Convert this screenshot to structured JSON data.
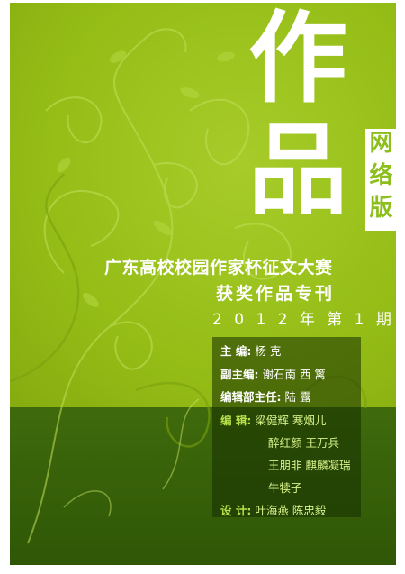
{
  "cover": {
    "title_char_1": "作",
    "title_char_2": "品",
    "side_label": [
      "网",
      "络",
      "版"
    ],
    "headline_1": "广东高校校园作家杯征文大赛",
    "headline_2": "获奖作品专刊",
    "headline_3": "2 0 1 2 年 第 1 期"
  },
  "credits": {
    "chief_label": "主   编:",
    "chief_value": "杨   克",
    "deputy_label": "副主编:",
    "deputy_value": "谢石南  西   篱",
    "director_label": "编辑部主任:",
    "director_value": "陆   露",
    "editors_label": "编   辑:",
    "editors": [
      "梁健辉  寒烟儿",
      "醉红颜  王万兵",
      "王朋非  麒麟凝瑞",
      "牛犊子"
    ],
    "design_label": "设   计:",
    "design_value": "叶海燕  陈忠毅"
  },
  "colors": {
    "upper_green": "#9cc31a",
    "lower_green": "#2f5706",
    "accent": "#b9e04a"
  }
}
